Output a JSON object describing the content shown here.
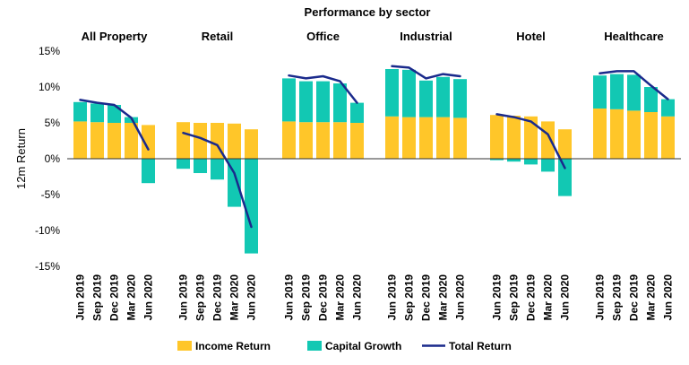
{
  "chart_data": {
    "type": "bar",
    "title": "Performance by sector",
    "ylabel": "12m Return",
    "ylim": [
      -15,
      15
    ],
    "yticks": [
      15,
      10,
      5,
      0,
      -5,
      -10,
      -15
    ],
    "ytick_labels": [
      "15%",
      "10%",
      "5%",
      "0%",
      "-5%",
      "-10%",
      "-15%"
    ],
    "periods": [
      "Jun 2019",
      "Sep 2019",
      "Dec 2019",
      "Mar 2020",
      "Jun 2020"
    ],
    "legend": {
      "position": "bottom",
      "entries": [
        "Income Return",
        "Capital Growth",
        "Total Return"
      ]
    },
    "colors": {
      "income": "#FFC629",
      "capital": "#12C8B3",
      "total": "#1A2A8C",
      "axis": "#333333"
    },
    "sectors": [
      {
        "name": "All Property",
        "income": [
          5.2,
          5.1,
          5.0,
          5.0,
          4.7
        ],
        "capital": [
          2.7,
          2.6,
          2.5,
          0.8,
          -3.4
        ],
        "total": [
          8.2,
          7.8,
          7.5,
          5.7,
          1.3
        ]
      },
      {
        "name": "Retail",
        "income": [
          5.1,
          5.0,
          5.0,
          4.9,
          4.1
        ],
        "capital": [
          -1.4,
          -2.0,
          -2.9,
          -6.7,
          -13.2
        ],
        "total": [
          3.6,
          2.9,
          1.9,
          -2.0,
          -9.5
        ]
      },
      {
        "name": "Office",
        "income": [
          5.2,
          5.1,
          5.1,
          5.1,
          5.0
        ],
        "capital": [
          6.0,
          5.7,
          5.7,
          5.4,
          2.8
        ],
        "total": [
          11.6,
          11.2,
          11.5,
          10.8,
          7.8
        ]
      },
      {
        "name": "Industrial",
        "income": [
          5.9,
          5.8,
          5.8,
          5.8,
          5.7
        ],
        "capital": [
          6.6,
          6.6,
          5.1,
          5.6,
          5.4
        ],
        "total": [
          12.9,
          12.7,
          11.2,
          11.8,
          11.5
        ]
      },
      {
        "name": "Hotel",
        "income": [
          6.1,
          6.0,
          5.9,
          5.2,
          4.1
        ],
        "capital": [
          -0.2,
          -0.4,
          -0.8,
          -1.8,
          -5.2
        ],
        "total": [
          6.2,
          5.8,
          5.2,
          3.4,
          -1.3
        ]
      },
      {
        "name": "Healthcare",
        "income": [
          7.0,
          6.9,
          6.7,
          6.5,
          5.9
        ],
        "capital": [
          4.6,
          4.9,
          5.0,
          3.5,
          2.4
        ],
        "total": [
          11.9,
          12.2,
          12.2,
          10.2,
          8.3
        ]
      }
    ]
  }
}
